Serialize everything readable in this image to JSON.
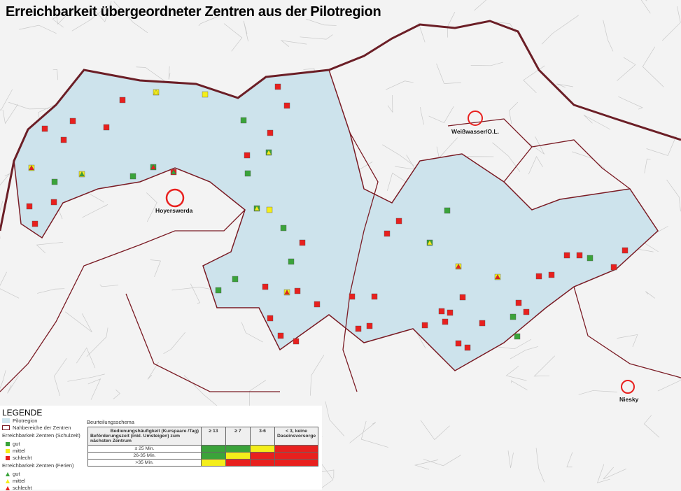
{
  "title": "Erreichbarkeit übergeordneter Zentren aus der Pilotregion",
  "places": {
    "hoyerswerda": "Hoyerswerda",
    "weisswasser": "Weißwasser/O.L.",
    "niesky": "Niesky"
  },
  "colors": {
    "gut": "#3aa33a",
    "mittel": "#f4ee1a",
    "schlecht": "#e8201e",
    "pilotregion": "#cfe6ef",
    "boundary": "#7a1b24"
  },
  "legend": {
    "heading": "LEGENDE",
    "pilotregion": "Pilotregion",
    "nahbereiche": "Nahbereiche der Zentren",
    "schulzeit_title": "Erreichbarkeit Zentren (Schulzeit)",
    "schulzeit": [
      "gut",
      "mittel",
      "schlecht"
    ],
    "ferien_title": "Erreichbarkeit Zentren (Ferien)",
    "ferien": [
      "gut",
      "mittel",
      "schlecht"
    ]
  },
  "schema": {
    "title": "Beurteilungsschema",
    "header_top": "Bedienungshäufigkeit (Kurspaare /Tag)",
    "header_side": "Beförderungszeit (inkl. Umsteigen) zum nächsten Zentrum",
    "columns": [
      "≥ 13",
      "≥ 7",
      "3-6",
      "< 3, keine Daseinsvorsorge"
    ],
    "rows": [
      {
        "label": "≤ 25 Min.",
        "cells": [
          "gut",
          "gut",
          "mittel",
          "schlecht"
        ]
      },
      {
        "label": "26-35 Min.",
        "cells": [
          "gut",
          "mittel",
          "schlecht",
          "schlecht"
        ]
      },
      {
        "label": ">35 Min.",
        "cells": [
          "mittel",
          "schlecht",
          "schlecht",
          "schlecht"
        ]
      }
    ]
  }
}
